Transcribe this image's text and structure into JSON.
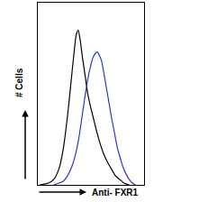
{
  "chart_data": {
    "type": "line",
    "x_label": "Anti- FXR1",
    "y_label": "# Cells",
    "tick_labels": false,
    "grid": false,
    "xlim": [
      0,
      100
    ],
    "ylim": [
      0,
      100
    ],
    "series": [
      {
        "color": "#000000",
        "x": [
          2,
          10,
          15,
          20,
          24,
          28,
          31,
          34,
          36,
          38,
          40,
          42,
          45,
          47,
          50,
          53,
          56,
          59,
          62,
          66,
          70,
          73,
          77,
          81,
          86
        ],
        "values": [
          0,
          1,
          3,
          9,
          20,
          38,
          55,
          72,
          82,
          85,
          79,
          70,
          58,
          50,
          42,
          35,
          28,
          22,
          17,
          12,
          8,
          5,
          3,
          1,
          0
        ]
      },
      {
        "color": "#2b35d6",
        "x": [
          15,
          20,
          24,
          28,
          32,
          36,
          39,
          41,
          44,
          47,
          50,
          52,
          54,
          56,
          58,
          60,
          62,
          64,
          67,
          69,
          72,
          75,
          78,
          80,
          83,
          86,
          89,
          92
        ],
        "values": [
          0,
          1,
          2,
          5,
          10,
          18,
          27,
          35,
          47,
          58,
          66,
          70,
          72,
          73,
          71,
          68,
          62,
          55,
          45,
          38,
          29,
          20,
          14,
          10,
          6,
          3,
          1,
          0
        ]
      }
    ]
  }
}
